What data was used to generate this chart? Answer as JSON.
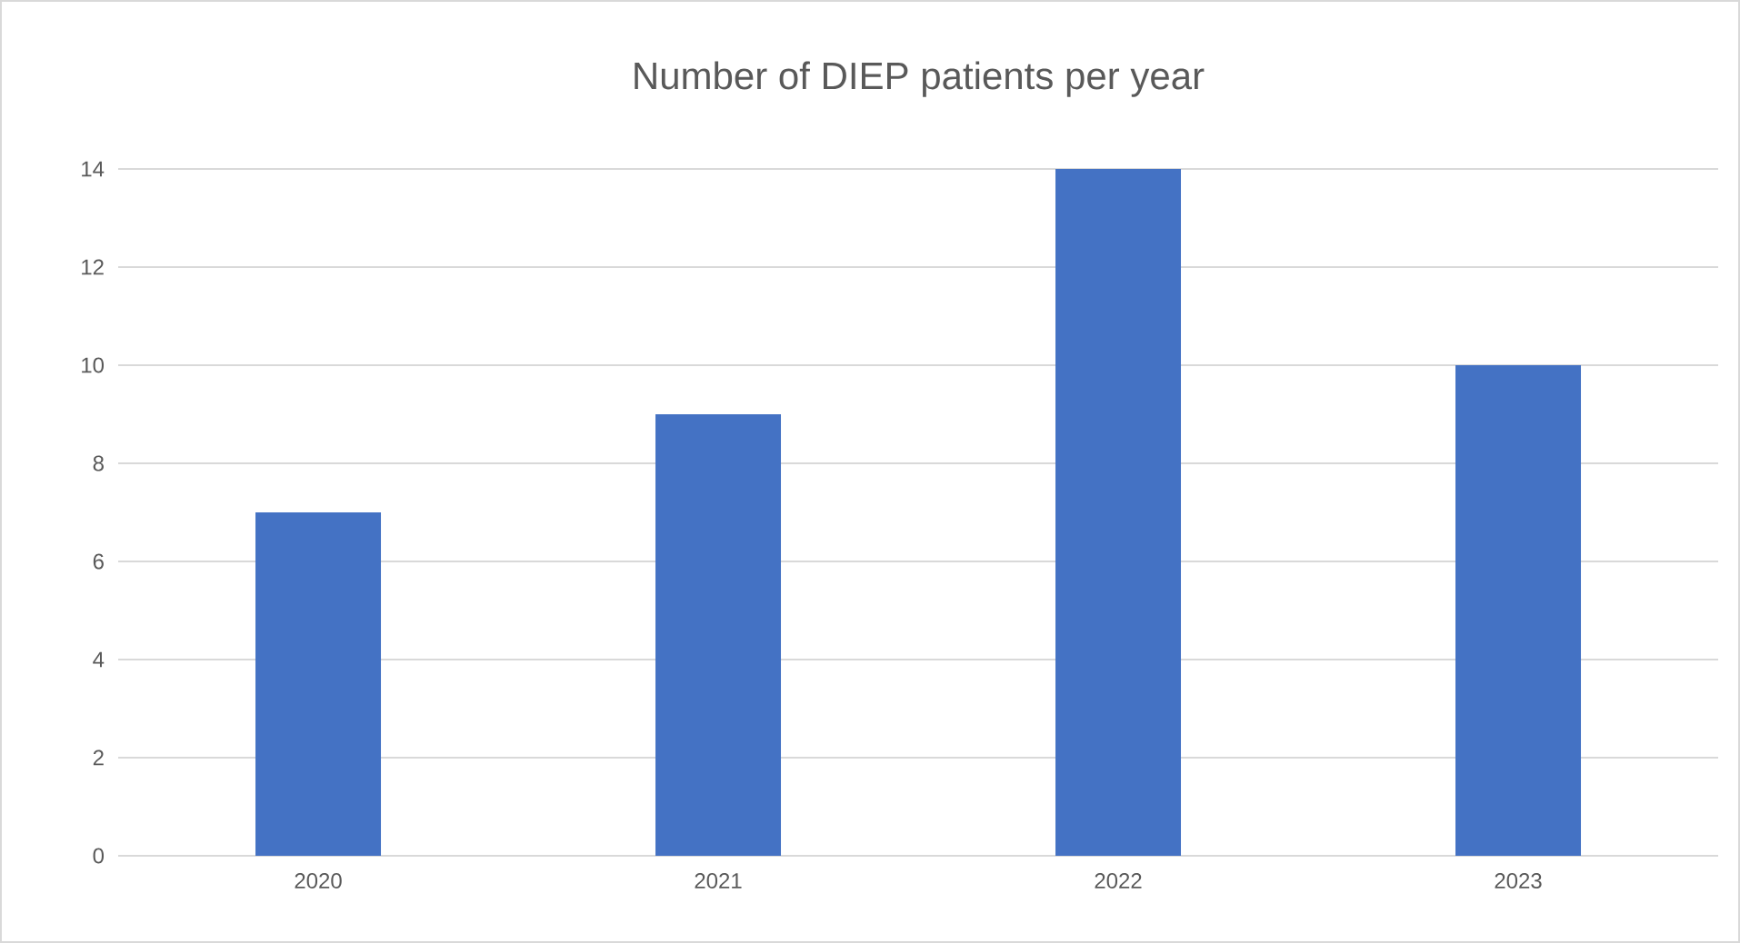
{
  "chart_data": {
    "type": "bar",
    "title": "Number of DIEP patients per year",
    "categories": [
      "2020",
      "2021",
      "2022",
      "2023"
    ],
    "values": [
      7,
      9,
      14,
      10
    ],
    "color": "#4472c4",
    "ylim": [
      0,
      14
    ],
    "yticks": [
      0,
      2,
      4,
      6,
      8,
      10,
      12,
      14
    ],
    "grid": "y"
  }
}
